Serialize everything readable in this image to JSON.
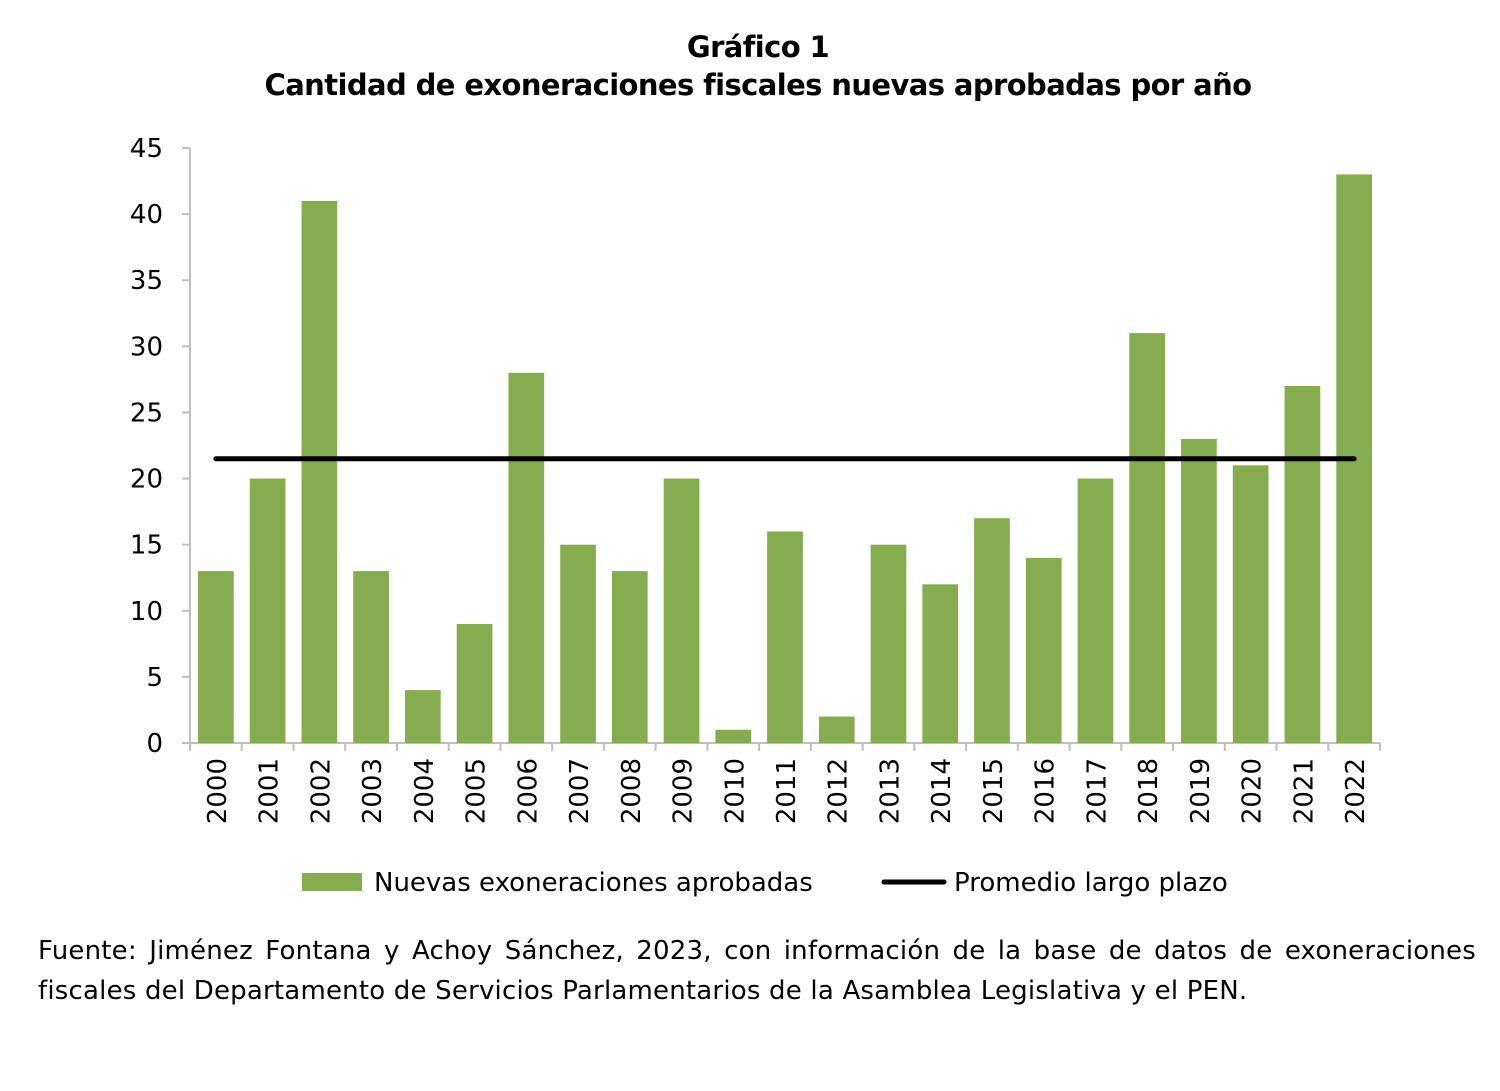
{
  "chart_data": {
    "type": "bar",
    "title": "Gráfico 1",
    "subtitle": "Cantidad de exoneraciones fiscales nuevas aprobadas por año",
    "xlabel": "",
    "ylabel": "",
    "categories": [
      "2000",
      "2001",
      "2002",
      "2003",
      "2004",
      "2005",
      "2006",
      "2007",
      "2008",
      "2009",
      "2010",
      "2011",
      "2012",
      "2013",
      "2014",
      "2015",
      "2016",
      "2017",
      "2018",
      "2019",
      "2020",
      "2021",
      "2022"
    ],
    "series": [
      {
        "name": "Nuevas exoneraciones aprobadas",
        "type": "bar",
        "color": "#86AC50",
        "values": [
          13,
          20,
          41,
          13,
          4,
          9,
          28,
          15,
          13,
          20,
          1,
          16,
          2,
          15,
          12,
          17,
          14,
          20,
          31,
          23,
          21,
          27,
          43
        ]
      },
      {
        "name": "Promedio largo plazo",
        "type": "line",
        "color": "#000000",
        "values": [
          21.5,
          21.5,
          21.5,
          21.5,
          21.5,
          21.5,
          21.5,
          21.5,
          21.5,
          21.5,
          21.5,
          21.5,
          21.5,
          21.5,
          21.5,
          21.5,
          21.5,
          21.5,
          21.5,
          21.5,
          21.5,
          21.5,
          21.5
        ]
      }
    ],
    "ylim": [
      0,
      45
    ],
    "yticks": [
      "0",
      "5",
      "10",
      "15",
      "20",
      "25",
      "30",
      "35",
      "40",
      "45"
    ],
    "grid": false,
    "legend_position": "bottom"
  },
  "source_note": "Fuente: Jiménez Fontana y Achoy Sánchez, 2023, con información de la base de datos de exoneraciones fiscales del Departamento de Servicios Parlamentarios de la Asamblea Legislativa y el PEN."
}
